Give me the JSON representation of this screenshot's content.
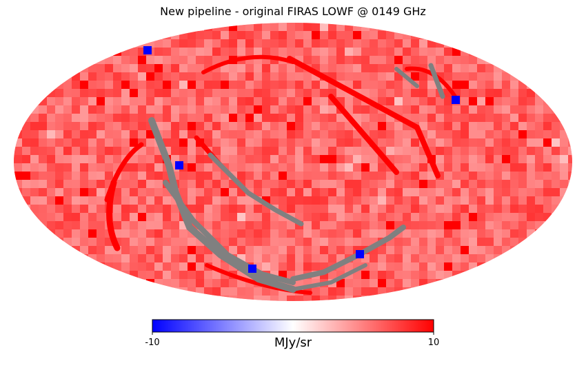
{
  "chart_data": {
    "type": "heatmap",
    "projection": "mollweide",
    "title": "New pipeline - original FIRAS LOWF @ 0149 GHz",
    "colorbar": {
      "min": -10,
      "max": 10,
      "min_label": "-10",
      "max_label": "10",
      "unit": "MJy/sr",
      "colors": [
        "#0000ff",
        "#ffffff",
        "#ff0000"
      ]
    },
    "background_value_range": [
      4,
      8
    ],
    "missing_color": "#808080",
    "masked_bands": [
      {
        "description": "grey stripe lower-left",
        "value": null
      },
      {
        "description": "grey stripe centre",
        "value": null
      },
      {
        "description": "grey stripe upper-right",
        "value": null
      }
    ]
  }
}
